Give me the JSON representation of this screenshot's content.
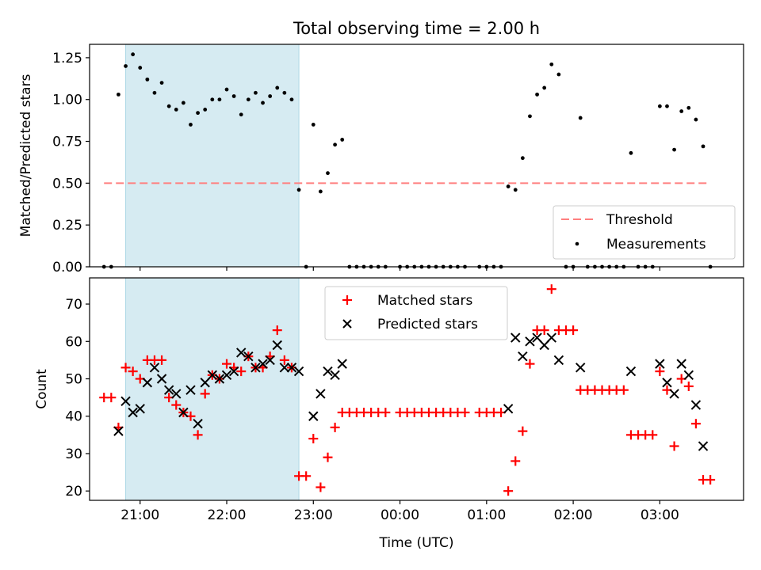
{
  "chart_data": [
    {
      "type": "scatter",
      "title": "Total observing time = 2.00 h",
      "xlabel": "",
      "ylabel": "Matched/Predicted stars",
      "ylim": [
        0,
        1.33
      ],
      "yticks": [
        0,
        0.25,
        0.5,
        0.75,
        1.0,
        1.25
      ],
      "ytick_labels": [
        "0.00",
        "0.25",
        "0.50",
        "0.75",
        "1.00",
        "1.25"
      ],
      "xlim": [
        "20:25",
        "03:58"
      ],
      "shaded_range": [
        "20:50",
        "22:50"
      ],
      "shaded_color": "#add8e6",
      "threshold": {
        "name": "Threshold",
        "value": 0.5,
        "x_range": [
          "20:35",
          "03:35"
        ],
        "color": "#ff7f7f"
      },
      "legend_position": "lower right",
      "series": [
        {
          "name": "Measurements",
          "color": "#000000",
          "marker": "dot",
          "points": [
            [
              "20:35",
              0.0
            ],
            [
              "20:40",
              0.0
            ],
            [
              "20:45",
              1.03
            ],
            [
              "20:50",
              1.2
            ],
            [
              "20:55",
              1.27
            ],
            [
              "21:00",
              1.19
            ],
            [
              "21:05",
              1.12
            ],
            [
              "21:10",
              1.04
            ],
            [
              "21:15",
              1.1
            ],
            [
              "21:20",
              0.96
            ],
            [
              "21:25",
              0.94
            ],
            [
              "21:30",
              0.98
            ],
            [
              "21:35",
              0.85
            ],
            [
              "21:40",
              0.92
            ],
            [
              "21:45",
              0.94
            ],
            [
              "21:50",
              1.0
            ],
            [
              "21:55",
              1.0
            ],
            [
              "22:00",
              1.06
            ],
            [
              "22:05",
              1.02
            ],
            [
              "22:10",
              0.91
            ],
            [
              "22:15",
              1.0
            ],
            [
              "22:20",
              1.04
            ],
            [
              "22:25",
              0.98
            ],
            [
              "22:30",
              1.02
            ],
            [
              "22:35",
              1.07
            ],
            [
              "22:40",
              1.04
            ],
            [
              "22:45",
              1.0
            ],
            [
              "22:50",
              0.46
            ],
            [
              "22:55",
              0.0
            ],
            [
              "23:00",
              0.85
            ],
            [
              "23:05",
              0.45
            ],
            [
              "23:10",
              0.56
            ],
            [
              "23:15",
              0.73
            ],
            [
              "23:20",
              0.76
            ],
            [
              "23:25",
              0.0
            ],
            [
              "23:30",
              0.0
            ],
            [
              "23:35",
              0.0
            ],
            [
              "23:40",
              0.0
            ],
            [
              "23:45",
              0.0
            ],
            [
              "23:50",
              0.0
            ],
            [
              "00:00",
              0.0
            ],
            [
              "00:05",
              0.0
            ],
            [
              "00:10",
              0.0
            ],
            [
              "00:15",
              0.0
            ],
            [
              "00:20",
              0.0
            ],
            [
              "00:25",
              0.0
            ],
            [
              "00:30",
              0.0
            ],
            [
              "00:35",
              0.0
            ],
            [
              "00:40",
              0.0
            ],
            [
              "00:45",
              0.0
            ],
            [
              "00:55",
              0.0
            ],
            [
              "01:00",
              0.0
            ],
            [
              "01:05",
              0.0
            ],
            [
              "01:10",
              0.0
            ],
            [
              "01:15",
              0.48
            ],
            [
              "01:20",
              0.46
            ],
            [
              "01:25",
              0.65
            ],
            [
              "01:30",
              0.9
            ],
            [
              "01:35",
              1.03
            ],
            [
              "01:40",
              1.07
            ],
            [
              "01:45",
              1.21
            ],
            [
              "01:50",
              1.15
            ],
            [
              "01:55",
              0.0
            ],
            [
              "02:00",
              0.0
            ],
            [
              "02:05",
              0.89
            ],
            [
              "02:10",
              0.0
            ],
            [
              "02:15",
              0.0
            ],
            [
              "02:20",
              0.0
            ],
            [
              "02:25",
              0.0
            ],
            [
              "02:30",
              0.0
            ],
            [
              "02:35",
              0.0
            ],
            [
              "02:40",
              0.68
            ],
            [
              "02:45",
              0.0
            ],
            [
              "02:50",
              0.0
            ],
            [
              "02:55",
              0.0
            ],
            [
              "03:00",
              0.96
            ],
            [
              "03:05",
              0.96
            ],
            [
              "03:10",
              0.7
            ],
            [
              "03:15",
              0.93
            ],
            [
              "03:20",
              0.95
            ],
            [
              "03:25",
              0.88
            ],
            [
              "03:30",
              0.72
            ],
            [
              "03:35",
              0.0
            ]
          ]
        }
      ]
    },
    {
      "type": "scatter",
      "title": "",
      "xlabel": "Time (UTC)",
      "ylabel": "Count",
      "ylim": [
        17.5,
        77
      ],
      "yticks": [
        20,
        30,
        40,
        50,
        60,
        70
      ],
      "ytick_labels": [
        "20",
        "30",
        "40",
        "50",
        "60",
        "70"
      ],
      "xlim": [
        "20:25",
        "03:58"
      ],
      "xticks": [
        "21:00",
        "22:00",
        "23:00",
        "00:00",
        "01:00",
        "02:00",
        "03:00"
      ],
      "shaded_range": [
        "20:50",
        "22:50"
      ],
      "shaded_color": "#add8e6",
      "legend_position": "upper center",
      "series": [
        {
          "name": "Matched stars",
          "color": "#ff0000",
          "marker": "plus",
          "points": [
            [
              "20:35",
              45
            ],
            [
              "20:40",
              45
            ],
            [
              "20:45",
              37
            ],
            [
              "20:50",
              53
            ],
            [
              "20:55",
              52
            ],
            [
              "21:00",
              50
            ],
            [
              "21:05",
              55
            ],
            [
              "21:10",
              55
            ],
            [
              "21:15",
              55
            ],
            [
              "21:20",
              45
            ],
            [
              "21:25",
              43
            ],
            [
              "21:30",
              41
            ],
            [
              "21:35",
              40
            ],
            [
              "21:40",
              35
            ],
            [
              "21:45",
              46
            ],
            [
              "21:50",
              51
            ],
            [
              "21:55",
              50
            ],
            [
              "22:00",
              54
            ],
            [
              "22:05",
              53
            ],
            [
              "22:10",
              52
            ],
            [
              "22:15",
              56
            ],
            [
              "22:20",
              53
            ],
            [
              "22:25",
              53
            ],
            [
              "22:30",
              56
            ],
            [
              "22:35",
              63
            ],
            [
              "22:40",
              55
            ],
            [
              "22:45",
              53
            ],
            [
              "22:50",
              24
            ],
            [
              "22:55",
              24
            ],
            [
              "23:00",
              34
            ],
            [
              "23:05",
              21
            ],
            [
              "23:10",
              29
            ],
            [
              "23:15",
              37
            ],
            [
              "23:20",
              41
            ],
            [
              "23:25",
              41
            ],
            [
              "23:30",
              41
            ],
            [
              "23:35",
              41
            ],
            [
              "23:40",
              41
            ],
            [
              "23:45",
              41
            ],
            [
              "23:50",
              41
            ],
            [
              "00:00",
              41
            ],
            [
              "00:05",
              41
            ],
            [
              "00:10",
              41
            ],
            [
              "00:15",
              41
            ],
            [
              "00:20",
              41
            ],
            [
              "00:25",
              41
            ],
            [
              "00:30",
              41
            ],
            [
              "00:35",
              41
            ],
            [
              "00:40",
              41
            ],
            [
              "00:45",
              41
            ],
            [
              "00:55",
              41
            ],
            [
              "01:00",
              41
            ],
            [
              "01:05",
              41
            ],
            [
              "01:10",
              41
            ],
            [
              "01:15",
              20
            ],
            [
              "01:20",
              28
            ],
            [
              "01:25",
              36
            ],
            [
              "01:30",
              54
            ],
            [
              "01:35",
              63
            ],
            [
              "01:40",
              63
            ],
            [
              "01:45",
              74
            ],
            [
              "01:50",
              63
            ],
            [
              "01:55",
              63
            ],
            [
              "02:00",
              63
            ],
            [
              "02:05",
              47
            ],
            [
              "02:10",
              47
            ],
            [
              "02:15",
              47
            ],
            [
              "02:20",
              47
            ],
            [
              "02:25",
              47
            ],
            [
              "02:30",
              47
            ],
            [
              "02:35",
              47
            ],
            [
              "02:40",
              35
            ],
            [
              "02:45",
              35
            ],
            [
              "02:50",
              35
            ],
            [
              "02:55",
              35
            ],
            [
              "03:00",
              52
            ],
            [
              "03:05",
              47
            ],
            [
              "03:10",
              32
            ],
            [
              "03:15",
              50
            ],
            [
              "03:20",
              48
            ],
            [
              "03:25",
              38
            ],
            [
              "03:30",
              23
            ],
            [
              "03:35",
              23
            ]
          ]
        },
        {
          "name": "Predicted stars",
          "color": "#000000",
          "marker": "x",
          "points": [
            [
              "20:45",
              36
            ],
            [
              "20:50",
              44
            ],
            [
              "20:55",
              41
            ],
            [
              "21:00",
              42
            ],
            [
              "21:05",
              49
            ],
            [
              "21:10",
              53
            ],
            [
              "21:15",
              50
            ],
            [
              "21:20",
              47
            ],
            [
              "21:25",
              46
            ],
            [
              "21:30",
              41
            ],
            [
              "21:35",
              47
            ],
            [
              "21:40",
              38
            ],
            [
              "21:45",
              49
            ],
            [
              "21:50",
              51
            ],
            [
              "21:55",
              50
            ],
            [
              "22:00",
              51
            ],
            [
              "22:05",
              52
            ],
            [
              "22:10",
              57
            ],
            [
              "22:15",
              56
            ],
            [
              "22:20",
              53
            ],
            [
              "22:25",
              54
            ],
            [
              "22:30",
              55
            ],
            [
              "22:35",
              59
            ],
            [
              "22:40",
              53
            ],
            [
              "22:45",
              53
            ],
            [
              "22:50",
              52
            ],
            [
              "23:00",
              40
            ],
            [
              "23:05",
              46
            ],
            [
              "23:10",
              52
            ],
            [
              "23:15",
              51
            ],
            [
              "23:20",
              54
            ],
            [
              "01:15",
              42
            ],
            [
              "01:20",
              61
            ],
            [
              "01:25",
              56
            ],
            [
              "01:30",
              60
            ],
            [
              "01:35",
              61
            ],
            [
              "01:40",
              59
            ],
            [
              "01:45",
              61
            ],
            [
              "01:50",
              55
            ],
            [
              "02:05",
              53
            ],
            [
              "02:40",
              52
            ],
            [
              "03:00",
              54
            ],
            [
              "03:05",
              49
            ],
            [
              "03:10",
              46
            ],
            [
              "03:15",
              54
            ],
            [
              "03:20",
              51
            ],
            [
              "03:25",
              43
            ],
            [
              "03:30",
              32
            ]
          ]
        }
      ]
    }
  ]
}
